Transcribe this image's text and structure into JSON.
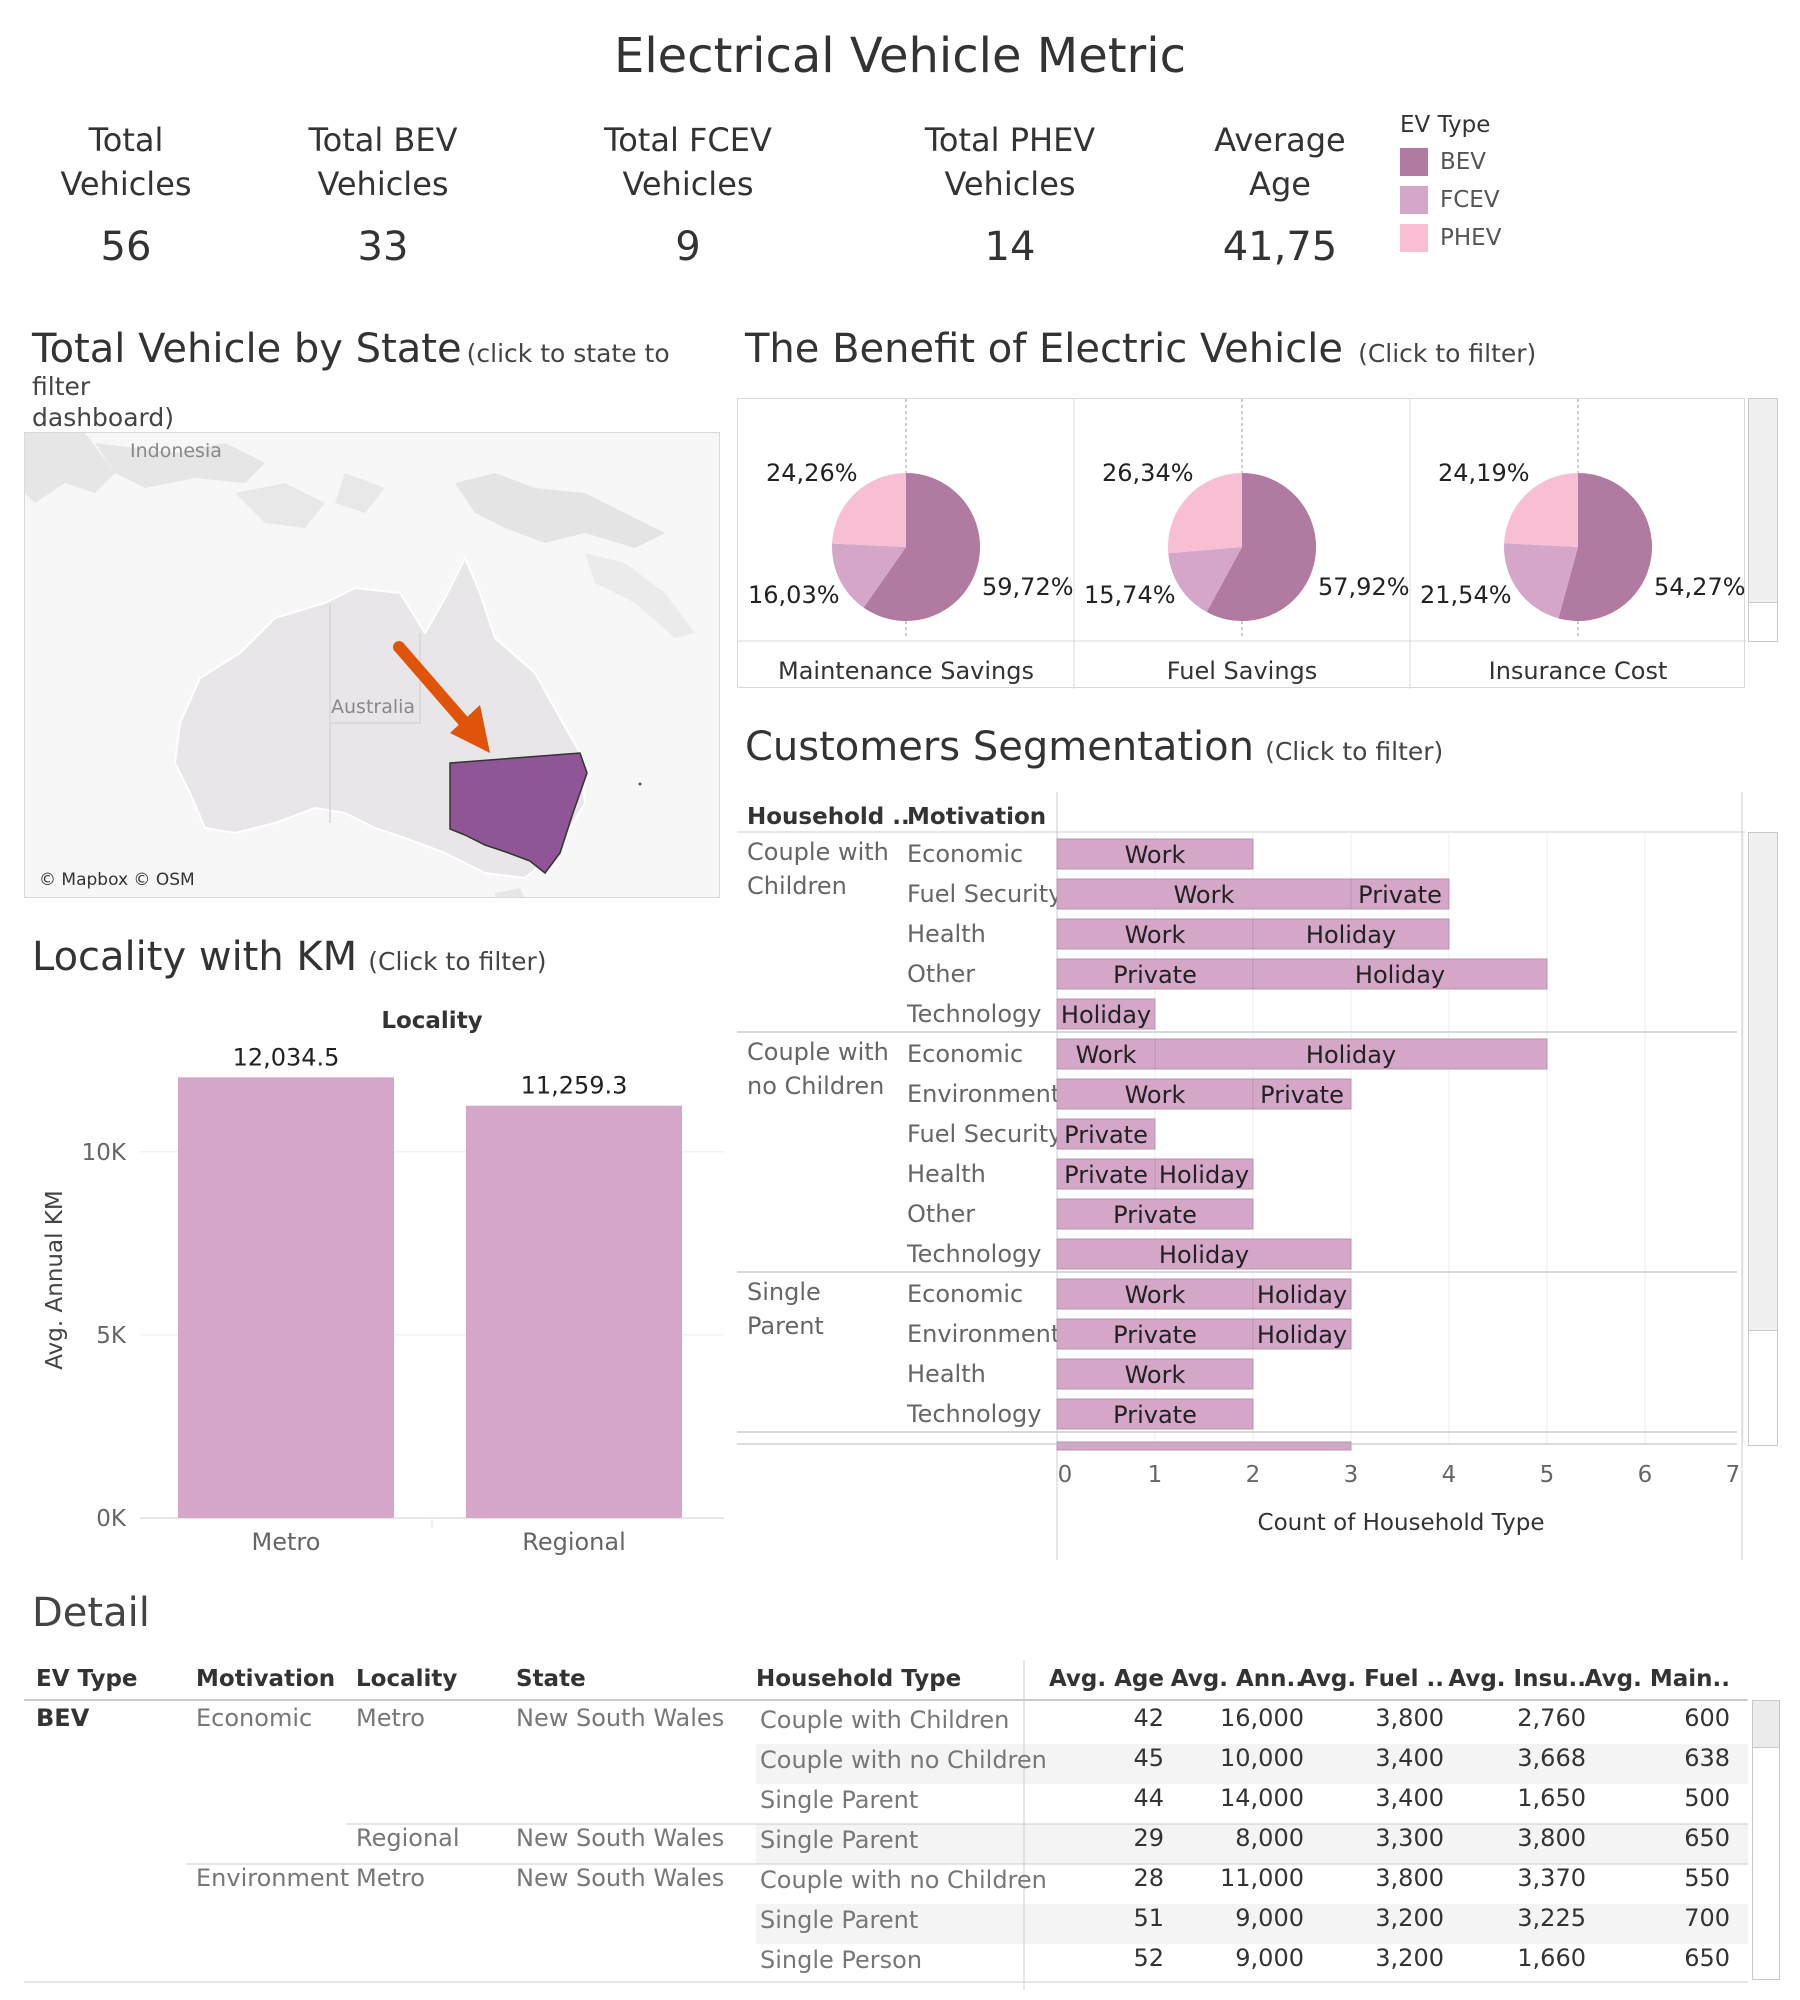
{
  "title": "Electrical Vehicle Metric",
  "kpis": [
    {
      "line1": "Total",
      "line2": "Vehicles",
      "value": "56"
    },
    {
      "line1": "Total BEV",
      "line2": "Vehicles",
      "value": "33"
    },
    {
      "line1": "Total FCEV",
      "line2": "Vehicles",
      "value": "9"
    },
    {
      "line1": "Total PHEV",
      "line2": "Vehicles",
      "value": "14"
    },
    {
      "line1": "Average",
      "line2": "Age",
      "value": "41,75"
    }
  ],
  "legend": {
    "title": "EV Type",
    "items": [
      {
        "label": "BEV",
        "color": "#b07aa1"
      },
      {
        "label": "FCEV",
        "color": "#d4a6c8"
      },
      {
        "label": "PHEV",
        "color": "#f8bfd4"
      }
    ]
  },
  "map": {
    "title": "Total Vehicle by State",
    "subtitle": "(click to state to filter",
    "subtitle2": "dashboard)",
    "label_indonesia": "Indonesia",
    "label_australia": "Australia",
    "credit": "© Mapbox © OSM",
    "highlight_color": "#8f5597",
    "arrow_color": "#e0540a"
  },
  "benefit": {
    "title": "The Benefit of Electric Vehicle",
    "subtitle": "(Click to filter)",
    "pies": [
      {
        "name": "Maintenance Savings",
        "bev": 59.72,
        "fcev": 16.03,
        "phev": 24.26,
        "bev_label": "59,72%",
        "fcev_label": "16,03%",
        "phev_label": "24,26%"
      },
      {
        "name": "Fuel Savings",
        "bev": 57.92,
        "fcev": 15.74,
        "phev": 26.34,
        "bev_label": "57,92%",
        "fcev_label": "15,74%",
        "phev_label": "26,34%"
      },
      {
        "name": "Insurance Cost",
        "bev": 54.27,
        "fcev": 21.54,
        "phev": 24.19,
        "bev_label": "54,27%",
        "fcev_label": "21,54%",
        "phev_label": "24,19%"
      }
    ]
  },
  "locality": {
    "title": "Locality with KM",
    "subtitle": "(Click to filter)"
  },
  "segmentation": {
    "title": "Customers Segmentation",
    "subtitle": "(Click to filter)",
    "col_household": "Household ..",
    "col_motivation": "Motivation",
    "groups": [
      {
        "household": [
          "Couple with",
          "Children"
        ],
        "rows": [
          {
            "motivation": "Economic",
            "segs": [
              {
                "label": "Work",
                "count": 2
              }
            ]
          },
          {
            "motivation": "Fuel Security",
            "segs": [
              {
                "label": "Work",
                "count": 3
              },
              {
                "label": "Private",
                "count": 1
              }
            ]
          },
          {
            "motivation": "Health",
            "segs": [
              {
                "label": "Work",
                "count": 2
              },
              {
                "label": "Holiday",
                "count": 2
              }
            ]
          },
          {
            "motivation": "Other",
            "segs": [
              {
                "label": "Private",
                "count": 2
              },
              {
                "label": "Holiday",
                "count": 3
              }
            ]
          },
          {
            "motivation": "Technology",
            "segs": [
              {
                "label": "Holiday",
                "count": 1
              }
            ]
          }
        ]
      },
      {
        "household": [
          "Couple with",
          "no Children"
        ],
        "rows": [
          {
            "motivation": "Economic",
            "segs": [
              {
                "label": "Work",
                "count": 1
              },
              {
                "label": "Holiday",
                "count": 4
              }
            ]
          },
          {
            "motivation": "Environment",
            "segs": [
              {
                "label": "Work",
                "count": 2
              },
              {
                "label": "Private",
                "count": 1
              }
            ]
          },
          {
            "motivation": "Fuel Security",
            "segs": [
              {
                "label": "Private",
                "count": 1
              }
            ]
          },
          {
            "motivation": "Health",
            "segs": [
              {
                "label": "Private",
                "count": 1
              },
              {
                "label": "Holiday",
                "count": 1
              }
            ]
          },
          {
            "motivation": "Other",
            "segs": [
              {
                "label": "Private",
                "count": 2
              }
            ]
          },
          {
            "motivation": "Technology",
            "segs": [
              {
                "label": "Holiday",
                "count": 3
              }
            ]
          }
        ]
      },
      {
        "household": [
          "Single",
          "Parent"
        ],
        "rows": [
          {
            "motivation": "Economic",
            "segs": [
              {
                "label": "Work",
                "count": 2
              },
              {
                "label": "Holiday",
                "count": 1
              }
            ]
          },
          {
            "motivation": "Environment",
            "segs": [
              {
                "label": "Private",
                "count": 2
              },
              {
                "label": "Holiday",
                "count": 1
              }
            ]
          },
          {
            "motivation": "Health",
            "segs": [
              {
                "label": "Work",
                "count": 2
              }
            ]
          },
          {
            "motivation": "Technology",
            "segs": [
              {
                "label": "Private",
                "count": 2
              }
            ]
          }
        ]
      }
    ],
    "axis_ticks": [
      "0",
      "1",
      "2",
      "3",
      "4",
      "5",
      "6",
      "7"
    ],
    "axis_title": "Count of Household Type"
  },
  "detail": {
    "title": "Detail",
    "headers": [
      "EV Type",
      "Motivation",
      "Locality",
      "State",
      "Household Type",
      "Avg. Age",
      "Avg. Ann..",
      "Avg. Fuel ..",
      "Avg. Insu..",
      "Avg. Main.."
    ],
    "rows": [
      {
        "ev": "BEV",
        "motivation": "Economic",
        "locality": "Metro",
        "state": "New South Wales",
        "household": "Couple with Children",
        "age": "42",
        "ann": "16,000",
        "fuel": "3,800",
        "insu": "2,760",
        "main": "600"
      },
      {
        "ev": "",
        "motivation": "",
        "locality": "",
        "state": "",
        "household": "Couple with no Children",
        "age": "45",
        "ann": "10,000",
        "fuel": "3,400",
        "insu": "3,668",
        "main": "638"
      },
      {
        "ev": "",
        "motivation": "",
        "locality": "",
        "state": "",
        "household": "Single Parent",
        "age": "44",
        "ann": "14,000",
        "fuel": "3,400",
        "insu": "1,650",
        "main": "500"
      },
      {
        "ev": "",
        "motivation": "",
        "locality": "Regional",
        "state": "New South Wales",
        "household": "Single Parent",
        "age": "29",
        "ann": "8,000",
        "fuel": "3,300",
        "insu": "3,800",
        "main": "650"
      },
      {
        "ev": "",
        "motivation": "Environment",
        "locality": "Metro",
        "state": "New South Wales",
        "household": "Couple with no Children",
        "age": "28",
        "ann": "11,000",
        "fuel": "3,800",
        "insu": "3,370",
        "main": "550"
      },
      {
        "ev": "",
        "motivation": "",
        "locality": "",
        "state": "",
        "household": "Single Parent",
        "age": "51",
        "ann": "9,000",
        "fuel": "3,200",
        "insu": "3,225",
        "main": "700"
      },
      {
        "ev": "",
        "motivation": "",
        "locality": "",
        "state": "",
        "household": "Single Person",
        "age": "52",
        "ann": "9,000",
        "fuel": "3,200",
        "insu": "1,660",
        "main": "650"
      }
    ]
  },
  "chart_data": [
    {
      "type": "bar",
      "title": "Locality",
      "categories": [
        "Metro",
        "Regional"
      ],
      "values": [
        12034.5,
        11259.3
      ],
      "value_labels": [
        "12,034.5",
        "11,259.3"
      ],
      "xlabel": "",
      "ylabel": "Avg. Annual KM",
      "ylim": [
        0,
        13000
      ],
      "yticks": [
        0,
        5000,
        10000
      ],
      "ytick_labels": [
        "0K",
        "5K",
        "10K"
      ],
      "color": "#d4a6c8"
    }
  ]
}
